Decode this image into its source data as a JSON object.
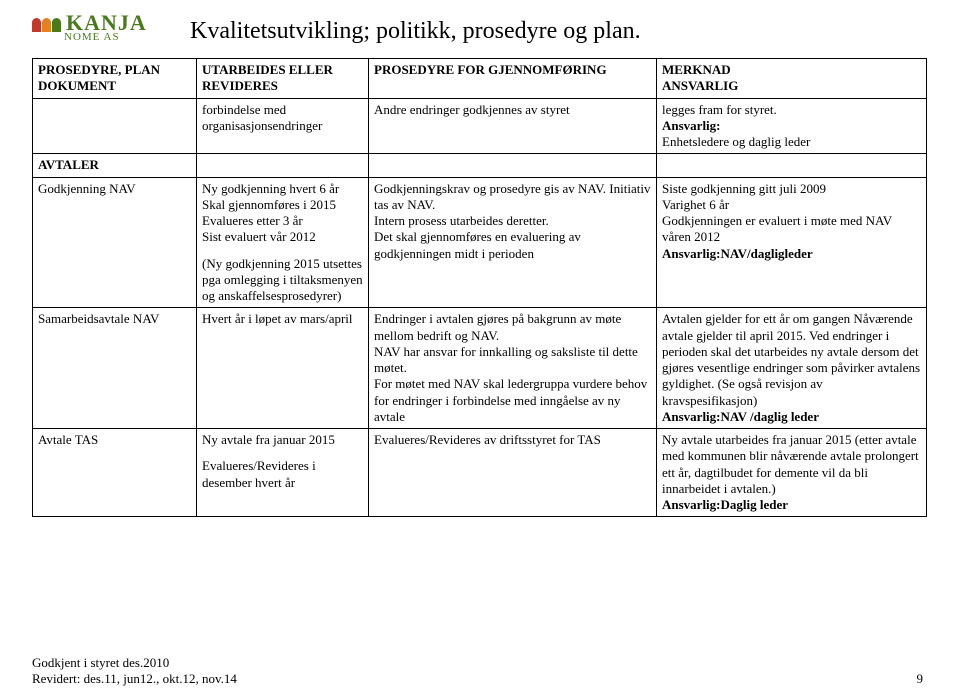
{
  "logo": {
    "brand": "KANJA",
    "sub": "NOME AS"
  },
  "title": "Kvalitetsutvikling; politikk, prosedyre og plan.",
  "headers": {
    "c0": "PROSEDYRE, PLAN DOKUMENT",
    "c1": "UTARBEIDES ELLER REVIDERES",
    "c2": "PROSEDYRE FOR GJENNOMFØRING",
    "c3a": "MERKNAD",
    "c3b": "ANSVARLIG"
  },
  "row0": {
    "c0": "",
    "c1": "forbindelse med organisasjonsendringer",
    "c2": "Andre endringer godkjennes av styret",
    "c3a": "legges fram for styret.",
    "c3b": "Ansvarlig:",
    "c3c": "Enhetsledere og daglig leder"
  },
  "row1": {
    "c0": "AVTALER"
  },
  "row2": {
    "c0": "Godkjenning NAV",
    "c1a": "Ny godkjenning hvert 6 år",
    "c1b": "Skal gjennomføres i 2015",
    "c1c": "Evalueres etter 3 år",
    "c1d": "Sist evaluert vår 2012",
    "c1e": "(Ny godkjenning 2015 utsettes pga omlegging i tiltaksmenyen og anskaffelsesprosedyrer)",
    "c2a": "Godkjenningskrav og prosedyre gis av NAV. Initiativ tas av NAV.",
    "c2b": "Intern prosess utarbeides deretter.",
    "c2c": "Det skal gjennomføres en evaluering av godkjenningen midt i perioden",
    "c3a": "Siste godkjenning gitt juli 2009",
    "c3b": "Varighet 6 år",
    "c3c": "Godkjenningen er evaluert i møte med NAV våren 2012",
    "c3d": "Ansvarlig:NAV/dagligleder"
  },
  "row3": {
    "c0": "Samarbeidsavtale NAV",
    "c1": "Hvert år i løpet av mars/april",
    "c2a": "Endringer i avtalen gjøres på bakgrunn av møte mellom bedrift og NAV.",
    "c2b": "NAV har ansvar for innkalling og saksliste til dette møtet.",
    "c2c": "For møtet med NAV skal ledergruppa vurdere behov for endringer i forbindelse med inngåelse av ny avtale",
    "c3a": "Avtalen gjelder for ett år om gangen Nåværende avtale gjelder til april 2015. Ved endringer i perioden skal det utarbeides ny avtale dersom det gjøres vesentlige endringer som påvirker avtalens gyldighet. (Se også revisjon av kravspesifikasjon)",
    "c3b": "Ansvarlig:NAV /daglig leder"
  },
  "row4": {
    "c0": "Avtale TAS",
    "c1a": "Ny avtale fra januar 2015",
    "c1b": "Evalueres/Revideres i desember hvert år",
    "c2": "Evalueres/Revideres av driftsstyret for TAS",
    "c3a": "Ny avtale utarbeides fra januar 2015 (etter avtale med kommunen blir nåværende avtale prolongert ett år, dagtilbudet for demente vil da bli innarbeidet i avtalen.)",
    "c3b": "Ansvarlig:Daglig leder"
  },
  "footer": {
    "line1": "Godkjent i styret des.2010",
    "line2": "Revidert: des.11, jun12., okt.12, nov.14"
  },
  "pagenum": "9"
}
